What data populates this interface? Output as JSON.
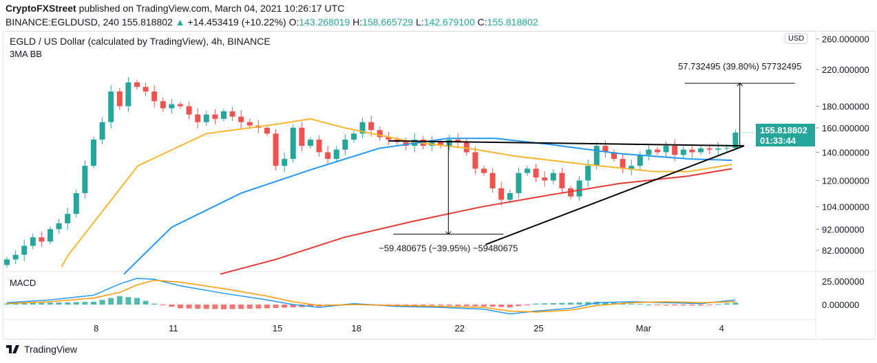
{
  "header": {
    "publisher": "CryptoFXStreet",
    "published_text": "published on TradingView.com, March 04, 2021 10:26:17 UTC",
    "symbol": "BINANCE:EGLDUSD, 240",
    "price": "155.818802",
    "change": "+14.453419 (+10.22%)",
    "o_label": "O:",
    "o": "143.268019",
    "h_label": "H:",
    "h": "158.665729",
    "l_label": "L:",
    "l": "142.679100",
    "c_label": "C:",
    "c": "155.818802"
  },
  "chart_title": "EGLD / US Dollar (calculated by TradingView), 4h, BINANCE",
  "indicator": "3MA BB",
  "macd_label": "MACD",
  "currency": "USD",
  "price_label": {
    "price": "155.818802",
    "countdown": "01:33:44"
  },
  "footer": "TradingView",
  "colors": {
    "up": "#26a69a",
    "down": "#ef5350",
    "ma50": "#f7b731",
    "ma100": "#2196f3",
    "ma200": "#e53935",
    "macd": "#2196f3",
    "signal": "#ff9800"
  },
  "chart_data": {
    "type": "candlestick",
    "interval_note": "bars approximated",
    "y_scale": "log",
    "y_ticks": [
      "260.000000",
      "220.000000",
      "180.000000",
      "160.000000",
      "140.000000",
      "120.000000",
      "104.000000",
      "92.000000",
      "82.000000"
    ],
    "y_tick_values": [
      260,
      220,
      180,
      160,
      140,
      120,
      104,
      92,
      82
    ],
    "x_ticks": [
      {
        "label": "8",
        "idx": 10.3
      },
      {
        "label": "11",
        "idx": 19.2
      },
      {
        "label": "15",
        "idx": 31.2
      },
      {
        "label": "18",
        "idx": 40.3
      },
      {
        "label": "22",
        "idx": 52.2
      },
      {
        "label": "25",
        "idx": 61.3
      },
      {
        "label": "Mar",
        "idx": 73.4
      },
      {
        "label": "4",
        "idx": 82.4
      }
    ],
    "closes": [
      78,
      80,
      84,
      88,
      86,
      92,
      95,
      100,
      112,
      130,
      150,
      165,
      195,
      180,
      205,
      200,
      195,
      185,
      178,
      182,
      180,
      172,
      165,
      172,
      168,
      175,
      170,
      165,
      162,
      160,
      155,
      130,
      135,
      160,
      145,
      150,
      140,
      135,
      142,
      150,
      155,
      165,
      158,
      152,
      150,
      148,
      145,
      150,
      145,
      148,
      145,
      150,
      148,
      140,
      128,
      125,
      115,
      108,
      112,
      125,
      128,
      122,
      120,
      125,
      115,
      110,
      120,
      130,
      145,
      140,
      135,
      128,
      130,
      138,
      142,
      140,
      145,
      138,
      142,
      140,
      143,
      142,
      143,
      143.268019,
      155.818802
    ],
    "last_candle": {
      "o": 143.268019,
      "h": 158.665729,
      "l": 142.6791,
      "c": 155.818802
    },
    "ma_series": [
      {
        "name": "MA50",
        "color": "#f7b731",
        "points": [
          [
            6.3,
            75
          ],
          [
            7.1,
            80
          ],
          [
            15.1,
            130
          ],
          [
            23,
            155
          ],
          [
            31,
            163
          ],
          [
            35,
            168
          ],
          [
            38.9,
            160
          ],
          [
            46.8,
            148
          ],
          [
            53.2,
            143
          ],
          [
            58.7,
            137
          ],
          [
            66.7,
            131
          ],
          [
            74.6,
            126
          ],
          [
            78.6,
            126
          ],
          [
            83.6,
            131
          ]
        ]
      },
      {
        "name": "MA100",
        "color": "#2196f3",
        "points": [
          [
            13.5,
            72
          ],
          [
            19,
            93
          ],
          [
            27,
            112
          ],
          [
            34.9,
            127
          ],
          [
            42.9,
            143
          ],
          [
            50.8,
            151
          ],
          [
            56.3,
            151
          ],
          [
            62.7,
            146
          ],
          [
            70.6,
            139
          ],
          [
            78.6,
            135
          ],
          [
            83.6,
            134
          ]
        ]
      },
      {
        "name": "MA200",
        "color": "#e53935",
        "points": [
          [
            24.6,
            72
          ],
          [
            31,
            78
          ],
          [
            38.9,
            88
          ],
          [
            46.8,
            96
          ],
          [
            54.8,
            104
          ],
          [
            62.7,
            111
          ],
          [
            70.6,
            118
          ],
          [
            78.6,
            123
          ],
          [
            83.6,
            128
          ]
        ]
      }
    ],
    "trendlines": [
      [
        [
          44,
          149
        ],
        [
          85,
          145
        ]
      ],
      [
        [
          55.2,
          84.6
        ],
        [
          85,
          145
        ]
      ]
    ],
    "measure_down": {
      "label": "−59.480675 (−39.95%) −59480675",
      "x": 50.9,
      "from": 149,
      "to": 89.5
    },
    "measure_up": {
      "label": "57.732495 (39.80%) 57732495",
      "x": 84.5,
      "from": 145,
      "to": 204
    },
    "macd": {
      "y_ticks": [
        "25.000000",
        "0.000000"
      ],
      "y_tick_values": [
        25,
        0
      ],
      "macd_points": [
        [
          0,
          2
        ],
        [
          5,
          5
        ],
        [
          10,
          10
        ],
        [
          13,
          22
        ],
        [
          15,
          28
        ],
        [
          17,
          27
        ],
        [
          20,
          20
        ],
        [
          25,
          12
        ],
        [
          30,
          5
        ],
        [
          33,
          0
        ],
        [
          36,
          -3
        ],
        [
          40,
          1
        ],
        [
          45,
          -2
        ],
        [
          50,
          -3
        ],
        [
          55,
          -5
        ],
        [
          58,
          -10
        ],
        [
          61,
          -7
        ],
        [
          65,
          -4
        ],
        [
          68,
          2
        ],
        [
          72,
          3
        ],
        [
          76,
          2
        ],
        [
          80,
          1
        ],
        [
          84,
          5
        ]
      ],
      "signal_points": [
        [
          0,
          1
        ],
        [
          5,
          3
        ],
        [
          10,
          7
        ],
        [
          13,
          13
        ],
        [
          15,
          21
        ],
        [
          17,
          26
        ],
        [
          20,
          24
        ],
        [
          25,
          17
        ],
        [
          30,
          9
        ],
        [
          33,
          3
        ],
        [
          36,
          -1
        ],
        [
          40,
          0
        ],
        [
          45,
          -1
        ],
        [
          50,
          -2
        ],
        [
          55,
          -3
        ],
        [
          58,
          -7
        ],
        [
          61,
          -8
        ],
        [
          65,
          -6
        ],
        [
          68,
          -1
        ],
        [
          72,
          2
        ],
        [
          76,
          3
        ],
        [
          80,
          2
        ],
        [
          84,
          3
        ]
      ]
    }
  }
}
